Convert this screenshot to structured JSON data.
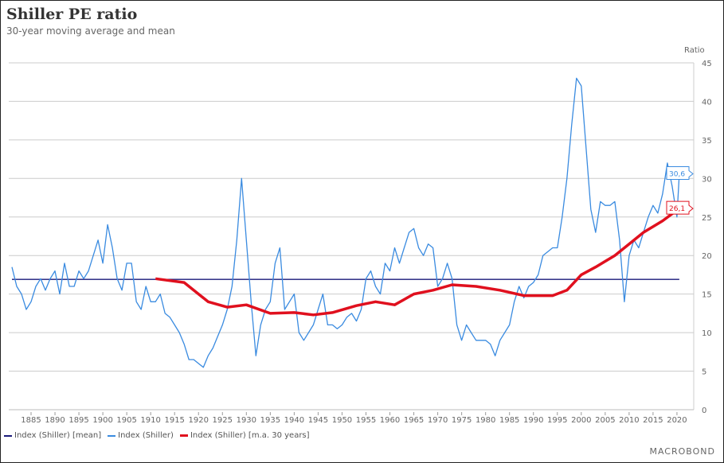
{
  "chart_data": {
    "type": "line",
    "title": "Shiller PE ratio",
    "subtitle": "30-year moving average and mean",
    "ylabel": "Ratio",
    "ylim": [
      0,
      45
    ],
    "xlim": [
      1881,
      2022
    ],
    "yticks": [
      0,
      5,
      10,
      15,
      20,
      25,
      30,
      35,
      40,
      45
    ],
    "xticks": [
      1885,
      1890,
      1895,
      1900,
      1905,
      1910,
      1915,
      1920,
      1925,
      1930,
      1935,
      1940,
      1945,
      1950,
      1955,
      1960,
      1965,
      1970,
      1975,
      1980,
      1985,
      1990,
      1995,
      2000,
      2005,
      2010,
      2015,
      2020
    ],
    "grid": true,
    "legend_position": "bottom-left",
    "series": [
      {
        "name": "Index (Shiller) [mean]",
        "color": "#1a1a7a",
        "x": [
          1881,
          2020.5
        ],
        "y": [
          16.9,
          16.9
        ]
      },
      {
        "name": "Index (Shiller)",
        "color": "#3a8be0",
        "x": [
          1881,
          1882,
          1883,
          1884,
          1885,
          1886,
          1887,
          1888,
          1889,
          1890,
          1891,
          1892,
          1893,
          1894,
          1895,
          1896,
          1897,
          1898,
          1899,
          1900,
          1901,
          1902,
          1903,
          1904,
          1905,
          1906,
          1907,
          1908,
          1909,
          1910,
          1911,
          1912,
          1913,
          1914,
          1915,
          1916,
          1917,
          1918,
          1919,
          1920,
          1921,
          1922,
          1923,
          1924,
          1925,
          1926,
          1927,
          1928,
          1929,
          1930,
          1931,
          1932,
          1933,
          1934,
          1935,
          1936,
          1937,
          1938,
          1939,
          1940,
          1941,
          1942,
          1943,
          1944,
          1945,
          1946,
          1947,
          1948,
          1949,
          1950,
          1951,
          1952,
          1953,
          1954,
          1955,
          1956,
          1957,
          1958,
          1959,
          1960,
          1961,
          1962,
          1963,
          1964,
          1965,
          1966,
          1967,
          1968,
          1969,
          1970,
          1971,
          1972,
          1973,
          1974,
          1975,
          1976,
          1977,
          1978,
          1979,
          1980,
          1981,
          1982,
          1983,
          1984,
          1985,
          1986,
          1987,
          1988,
          1989,
          1990,
          1991,
          1992,
          1993,
          1994,
          1995,
          1996,
          1997,
          1998,
          1999,
          2000,
          2001,
          2002,
          2003,
          2004,
          2005,
          2006,
          2007,
          2008,
          2009,
          2010,
          2011,
          2012,
          2013,
          2014,
          2015,
          2016,
          2017,
          2018,
          2019,
          2020,
          2020.5
        ],
        "y": [
          18.5,
          16,
          15,
          13,
          14,
          16,
          17,
          15.5,
          17,
          18,
          15,
          19,
          16,
          16,
          18,
          17,
          18,
          20,
          22,
          19,
          24,
          21,
          17,
          15.5,
          19,
          19,
          14,
          13,
          16,
          14,
          14,
          15,
          12.5,
          12,
          11,
          10,
          8.5,
          6.5,
          6.5,
          6,
          5.5,
          7,
          8,
          9.5,
          11,
          13,
          16,
          22,
          30,
          22,
          14,
          7,
          11,
          13,
          14,
          19,
          21,
          13,
          14,
          15,
          10,
          9,
          10,
          11,
          13,
          15,
          11,
          11,
          10.5,
          11,
          12,
          12.5,
          11.5,
          13,
          17,
          18,
          16,
          15,
          19,
          18,
          21,
          19,
          21,
          23,
          23.5,
          21,
          20,
          21.5,
          21,
          16,
          17,
          19,
          17,
          11,
          9,
          11,
          10,
          9,
          9,
          9,
          8.5,
          7,
          9,
          10,
          11,
          14,
          16,
          14.5,
          16,
          16.5,
          17.5,
          20,
          20.5,
          21,
          21,
          25,
          30,
          37,
          43,
          42,
          34,
          26,
          23,
          27,
          26.5,
          26.5,
          27,
          22,
          14,
          20,
          22,
          21,
          23,
          25,
          26.5,
          25.5,
          28,
          32,
          29,
          25,
          30.6
        ]
      },
      {
        "name": "Index (Shiller) [m.a. 30 years]",
        "color": "#e0101e",
        "x": [
          1911,
          1917,
          1922,
          1926,
          1930,
          1935,
          1940,
          1944,
          1948,
          1953,
          1957,
          1961,
          1965,
          1969,
          1973,
          1978,
          1983,
          1988,
          1994,
          1997,
          2000,
          2003,
          2007,
          2010,
          2013,
          2017,
          2020.5
        ],
        "y": [
          17,
          16.5,
          14,
          13.3,
          13.6,
          12.5,
          12.6,
          12.3,
          12.6,
          13.5,
          14,
          13.6,
          15,
          15.5,
          16.2,
          16,
          15.5,
          14.8,
          14.8,
          15.5,
          17.5,
          18.5,
          20,
          21.5,
          23,
          24.5,
          26.1
        ]
      }
    ],
    "last_value_labels": [
      {
        "series": "Index (Shiller)",
        "value": "30,6",
        "color": "#3a8be0"
      },
      {
        "series": "Index (Shiller) [m.a. 30 years]",
        "value": "26,1",
        "color": "#e0101e"
      }
    ]
  },
  "brand": "MACROBOND"
}
